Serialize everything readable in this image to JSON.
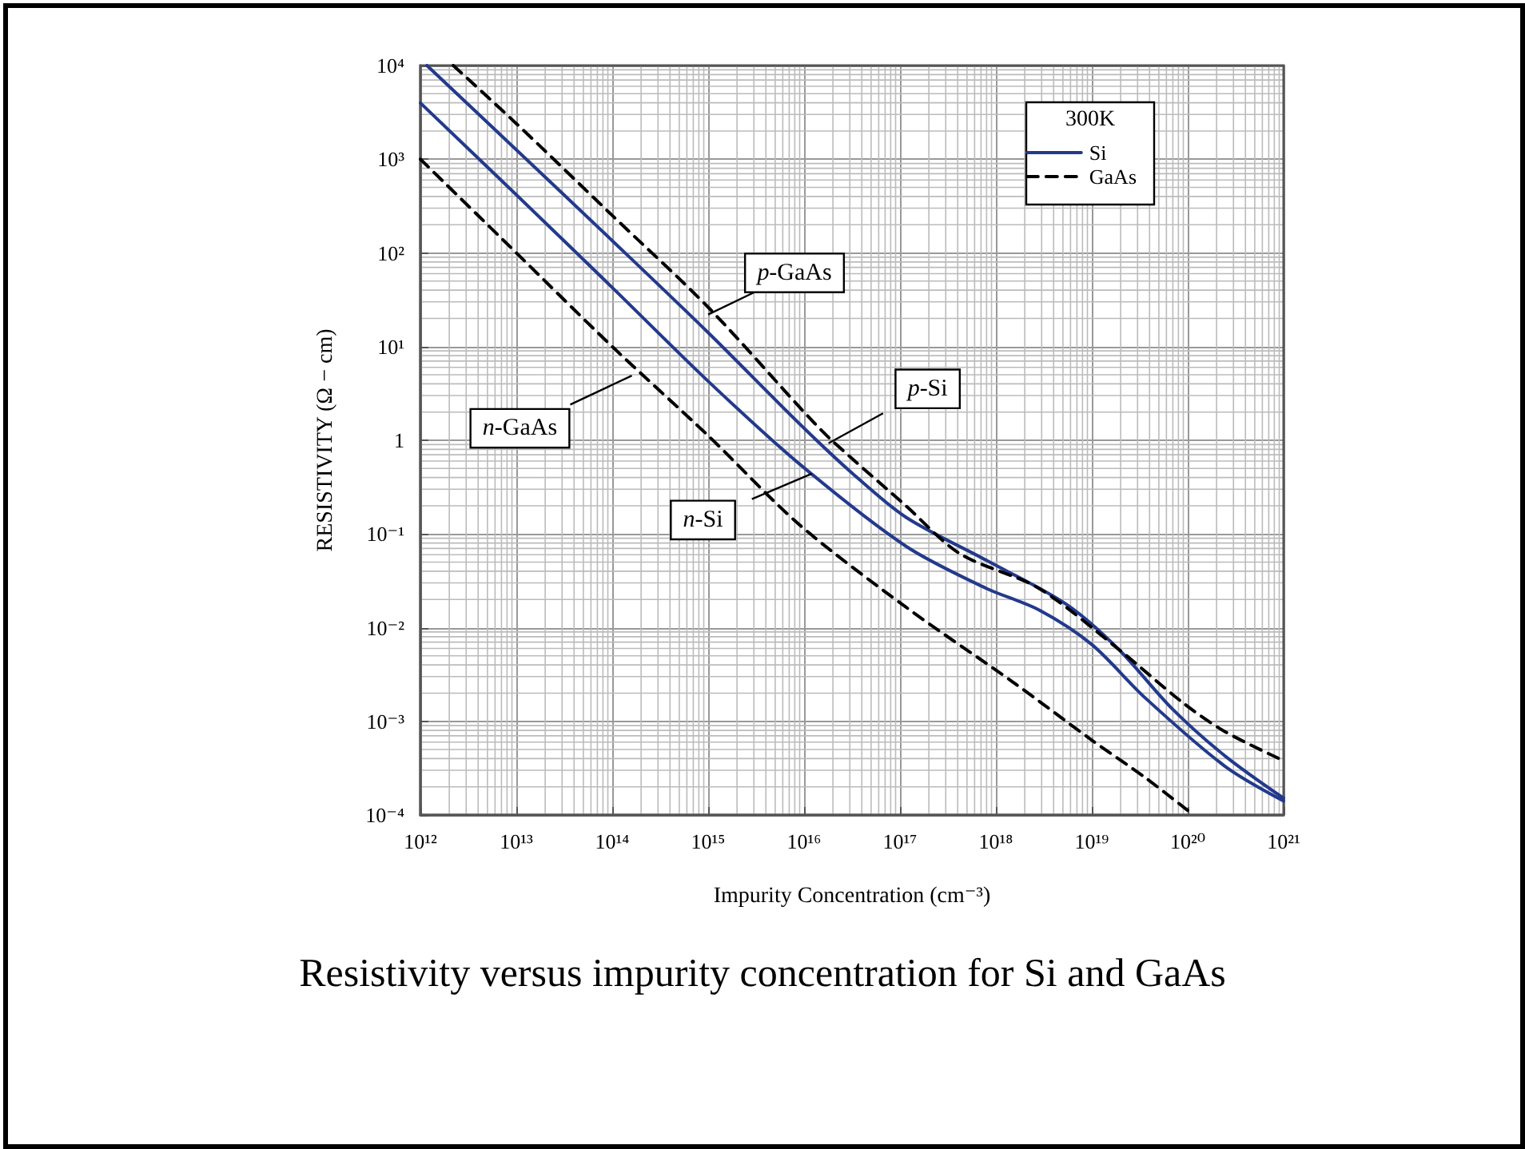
{
  "chart_data": {
    "type": "line",
    "title": "Resistivity versus impurity concentration for Si and GaAs",
    "xlabel": "Impurity Concentration (cm⁻³)",
    "ylabel": "RESISTIVITY (Ω − cm)",
    "legend_title": "300K",
    "log": "xy",
    "grid": true,
    "legend": "top right",
    "marker": "none",
    "xlim": [
      1000000000000.0,
      1e+21
    ],
    "ylim": [
      0.0001,
      10000.0
    ],
    "xticks": [
      {
        "value": 1000000000000.0,
        "label": "10¹²"
      },
      {
        "value": 10000000000000.0,
        "label": "10¹³"
      },
      {
        "value": 100000000000000.0,
        "label": "10¹⁴"
      },
      {
        "value": 1000000000000000.0,
        "label": "10¹⁵"
      },
      {
        "value": 1e+16,
        "label": "10¹⁶"
      },
      {
        "value": 1e+17,
        "label": "10¹⁷"
      },
      {
        "value": 1e+18,
        "label": "10¹⁸"
      },
      {
        "value": 1e+19,
        "label": "10¹⁹"
      },
      {
        "value": 1e+20,
        "label": "10²⁰"
      },
      {
        "value": 1e+21,
        "label": "10²¹"
      }
    ],
    "yticks": [
      {
        "value": 0.0001,
        "label": "10⁻⁴"
      },
      {
        "value": 0.001,
        "label": "10⁻³"
      },
      {
        "value": 0.01,
        "label": "10⁻²"
      },
      {
        "value": 0.1,
        "label": "10⁻¹"
      },
      1,
      {
        "value": 10,
        "label": "10¹"
      },
      {
        "value": 100,
        "label": "10²"
      },
      {
        "value": 1000,
        "label": "10³"
      },
      {
        "value": 10000,
        "label": "10⁴"
      }
    ],
    "series": [
      {
        "name": "Si",
        "color": "#233a8c",
        "line_style": "solid",
        "x": [
          1170000000000.0,
          10000000000000.0,
          100000000000000.0,
          1000000000000000.0,
          8900000000000000.0,
          3.16e+16,
          1.15e+17,
          7.9e+17,
          5.4e+18,
          1.9e+19,
          6.8e+19,
          2.45e+20,
          1e+21
        ],
        "values": [
          10000,
          1260,
          135,
          14.1,
          1.51,
          0.447,
          0.151,
          0.0525,
          0.0178,
          0.00589,
          0.00138,
          0.000427,
          0.000151
        ]
      },
      {
        "color": "#233a8c",
        "line_style": "solid",
        "x": [
          1000000000000.0,
          10000000000000.0,
          100000000000000.0,
          1000000000000000.0,
          8900000000000000.0,
          1.15e+17,
          7.9e+17,
          2.8e+18,
          1e+19,
          3.6e+19,
          2.45e+20,
          1e+21
        ],
        "values": [
          3980,
          417,
          42.7,
          4.27,
          0.562,
          0.0741,
          0.0263,
          0.0155,
          0.0066,
          0.00178,
          0.000331,
          0.000141
        ]
      },
      {
        "name": "GaAs",
        "color": "#000000",
        "line_style": "dashed",
        "x": [
          2200000000000.0,
          10000000000000.0,
          100000000000000.0,
          1000000000000000.0,
          1e+16,
          1.9e+16,
          1.15e+17,
          4.2e+17,
          2.8e+18,
          1.9e+19,
          8.9e+19,
          2.45e+20,
          1e+21
        ],
        "values": [
          10000,
          2400,
          251,
          26.3,
          2,
          1.02,
          0.2,
          0.0617,
          0.0263,
          0.00589,
          0.00158,
          0.000776,
          0.00038
        ]
      },
      {
        "color": "#000000",
        "line_style": "dashed",
        "x": [
          1000000000000.0,
          10000000000000.0,
          100000000000000.0,
          1000000000000000.0,
          8900000000000000.0,
          1.15e+17,
          1.5e+18,
          1e+19,
          3.6e+19,
          1.15e+20
        ],
        "values": [
          1000,
          100,
          10,
          1.12,
          0.126,
          0.0166,
          0.00263,
          0.00063,
          0.000251,
          0.0001
        ]
      }
    ],
    "annotations": [
      {
        "text": "p-GaAs",
        "x": 1000000000000000.0,
        "y": 22
      },
      {
        "text": "n-GaAs",
        "x": 160000000000000.0,
        "y": 4.9
      },
      {
        "text": "p-Si",
        "x": 1.8e+16,
        "y": 0.93
      },
      {
        "text": "n-Si",
        "x": 1.2e+16,
        "y": 0.44
      }
    ]
  }
}
